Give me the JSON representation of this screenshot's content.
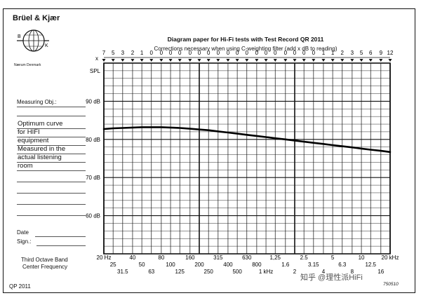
{
  "header": {
    "brand": "Brüel & Kjær",
    "logo_text": "Nærum Denmark",
    "logo_letters": [
      "B",
      "K"
    ],
    "title": "Diagram paper for Hi-Fi tests with Test Record QR 2011",
    "subtitle": "Corrections necessary when using C-weighting filter (add x dB to reading)"
  },
  "sidebar": {
    "measuring_obj_label": "Measuring Obj.:",
    "handwritten_lines": [
      "Optimum curve",
      "for HIFI",
      "equipment",
      "Measured in the",
      "actual listening",
      "room"
    ],
    "date_label": "Date",
    "sign_label": "Sign.:",
    "band_label_1": "Third Octave Band",
    "band_label_2": "Center Frequency"
  },
  "footer": {
    "left": "QP 2011",
    "right": "750510",
    "watermark": "知乎 @理性派HiFi"
  },
  "chart_data": {
    "type": "line",
    "title": "Diagram paper for Hi-Fi tests with Test Record QR 2011",
    "xscale": "log",
    "xlim": [
      20,
      20000
    ],
    "ylim": [
      50,
      100
    ],
    "y_unit_label": "SPL",
    "ytick_labels": [
      {
        "value": 90,
        "label": "90 dB"
      },
      {
        "value": 80,
        "label": "80 dB"
      },
      {
        "value": 70,
        "label": "70 dB"
      },
      {
        "value": 60,
        "label": "60 dB"
      }
    ],
    "corrections": {
      "prefix": "x",
      "values": [
        "7",
        "5",
        "3",
        "2",
        "1",
        "0",
        "0",
        "0",
        "0",
        "0",
        "0",
        "0",
        "0",
        "0",
        "0",
        "0",
        "0",
        "0",
        "0",
        "0",
        "0",
        "0",
        "0",
        "1",
        "1",
        "2",
        "3",
        "5",
        "6",
        "9",
        "12"
      ]
    },
    "x_frequencies": [
      20,
      25,
      31.5,
      40,
      50,
      63,
      80,
      100,
      125,
      160,
      200,
      250,
      315,
      400,
      500,
      630,
      800,
      1000,
      1250,
      1600,
      2000,
      2500,
      3150,
      4000,
      5000,
      6300,
      8000,
      10000,
      12500,
      16000,
      20000
    ],
    "x_labels": [
      "20 Hz",
      "25",
      "31.5",
      "40",
      "50",
      "63",
      "80",
      "100",
      "125",
      "160",
      "200",
      "250",
      "315",
      "400",
      "500",
      "630",
      "800",
      "1 kHz",
      "1,25",
      "1.6",
      "2",
      "2.5",
      "3.15",
      "4",
      "5",
      "6.3",
      "8",
      "10",
      "12.5",
      "16",
      "20 kHz"
    ],
    "series": [
      {
        "name": "Optimum curve for HIFI equipment",
        "x": [
          20,
          25,
          31.5,
          40,
          50,
          63,
          80,
          100,
          125,
          160,
          200,
          250,
          315,
          400,
          500,
          630,
          800,
          1000,
          1250,
          1600,
          2000,
          2500,
          3150,
          4000,
          5000,
          6300,
          8000,
          10000,
          12500,
          16000,
          20000
        ],
        "y": [
          82.7,
          82.9,
          83.0,
          83.1,
          83.2,
          83.2,
          83.2,
          83.1,
          83.0,
          82.8,
          82.6,
          82.4,
          82.1,
          81.8,
          81.5,
          81.2,
          80.9,
          80.6,
          80.3,
          80.0,
          79.7,
          79.4,
          79.1,
          78.8,
          78.5,
          78.2,
          77.9,
          77.6,
          77.3,
          77.0,
          76.7
        ]
      }
    ]
  }
}
